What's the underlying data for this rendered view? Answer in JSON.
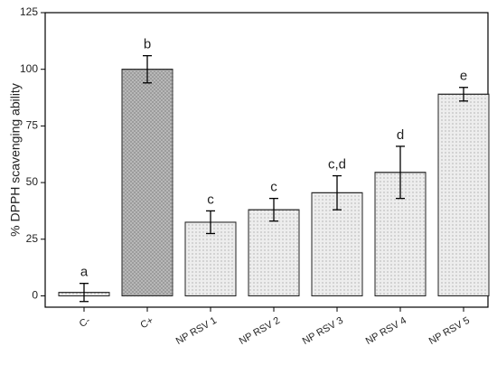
{
  "chart_data": {
    "type": "bar",
    "y_label": "% DPPH scavenging ability",
    "categories": [
      "C-",
      "C+",
      "NP RSV 1",
      "NP RSV 2",
      "NP RSV 3",
      "NP RSV 4",
      "NP RSV 5"
    ],
    "values": [
      1.5,
      100,
      32.5,
      38,
      45.5,
      54.5,
      89
    ],
    "errors": [
      4,
      6,
      5,
      5,
      7.5,
      11.5,
      3
    ],
    "annotations": [
      "a",
      "b",
      "c",
      "c",
      "c,d",
      "d",
      "e"
    ],
    "colors": [
      "#f7f7f7",
      "#b8b8b8",
      "#ededed",
      "#ededed",
      "#ededed",
      "#ededed",
      "#ededed"
    ],
    "ylim": [
      -5,
      125
    ],
    "yticks": [
      0,
      25,
      50,
      75,
      100,
      125
    ],
    "grid": false
  }
}
